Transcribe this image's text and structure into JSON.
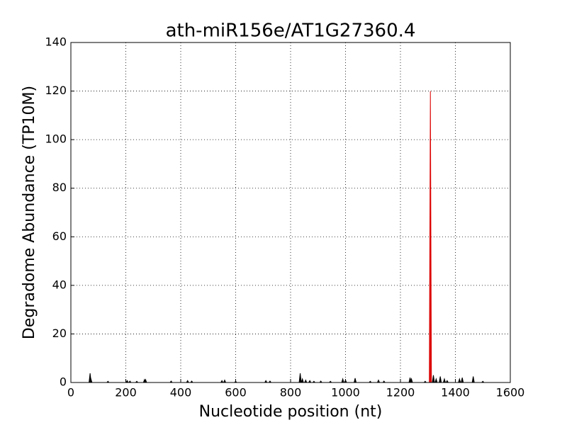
{
  "chart_data": {
    "type": "spike",
    "title": "ath-miR156e/AT1G27360.4",
    "xlabel": "Nucleotide position (nt)",
    "ylabel": "Degradome Abundance (TP10M)",
    "xlim": [
      0,
      1600
    ],
    "xticks": [
      0,
      200,
      400,
      600,
      800,
      1000,
      1200,
      1400,
      1600
    ],
    "ylim": [
      0,
      140
    ],
    "yticks": [
      0,
      20,
      40,
      60,
      80,
      100,
      120,
      140
    ],
    "grid": true,
    "series": [
      {
        "color": "#000000",
        "x": [
          70,
          73,
          135,
          205,
          215,
          240,
          268,
          272,
          365,
          425,
          440,
          550,
          560,
          600,
          710,
          725,
          835,
          843,
          855,
          870,
          885,
          910,
          945,
          990,
          1000,
          1035,
          1090,
          1120,
          1140,
          1235,
          1240,
          1290,
          1320,
          1330,
          1345,
          1360,
          1370,
          1415,
          1425,
          1465,
          1500
        ],
        "values": [
          3.8,
          1.5,
          0.5,
          0.8,
          0.6,
          0.5,
          1.2,
          1.2,
          0.6,
          0.8,
          0.6,
          0.8,
          1.0,
          0.5,
          0.8,
          0.6,
          3.8,
          1.5,
          1.0,
          0.8,
          0.5,
          0.6,
          0.5,
          1.5,
          1.0,
          1.8,
          0.5,
          1.0,
          0.6,
          2.0,
          1.5,
          0.5,
          3.0,
          1.5,
          2.5,
          1.5,
          0.8,
          1.5,
          2.0,
          2.5,
          0.5
        ]
      },
      {
        "color": "#dd0000",
        "x": [
          1309
        ],
        "values": [
          120
        ]
      }
    ]
  }
}
